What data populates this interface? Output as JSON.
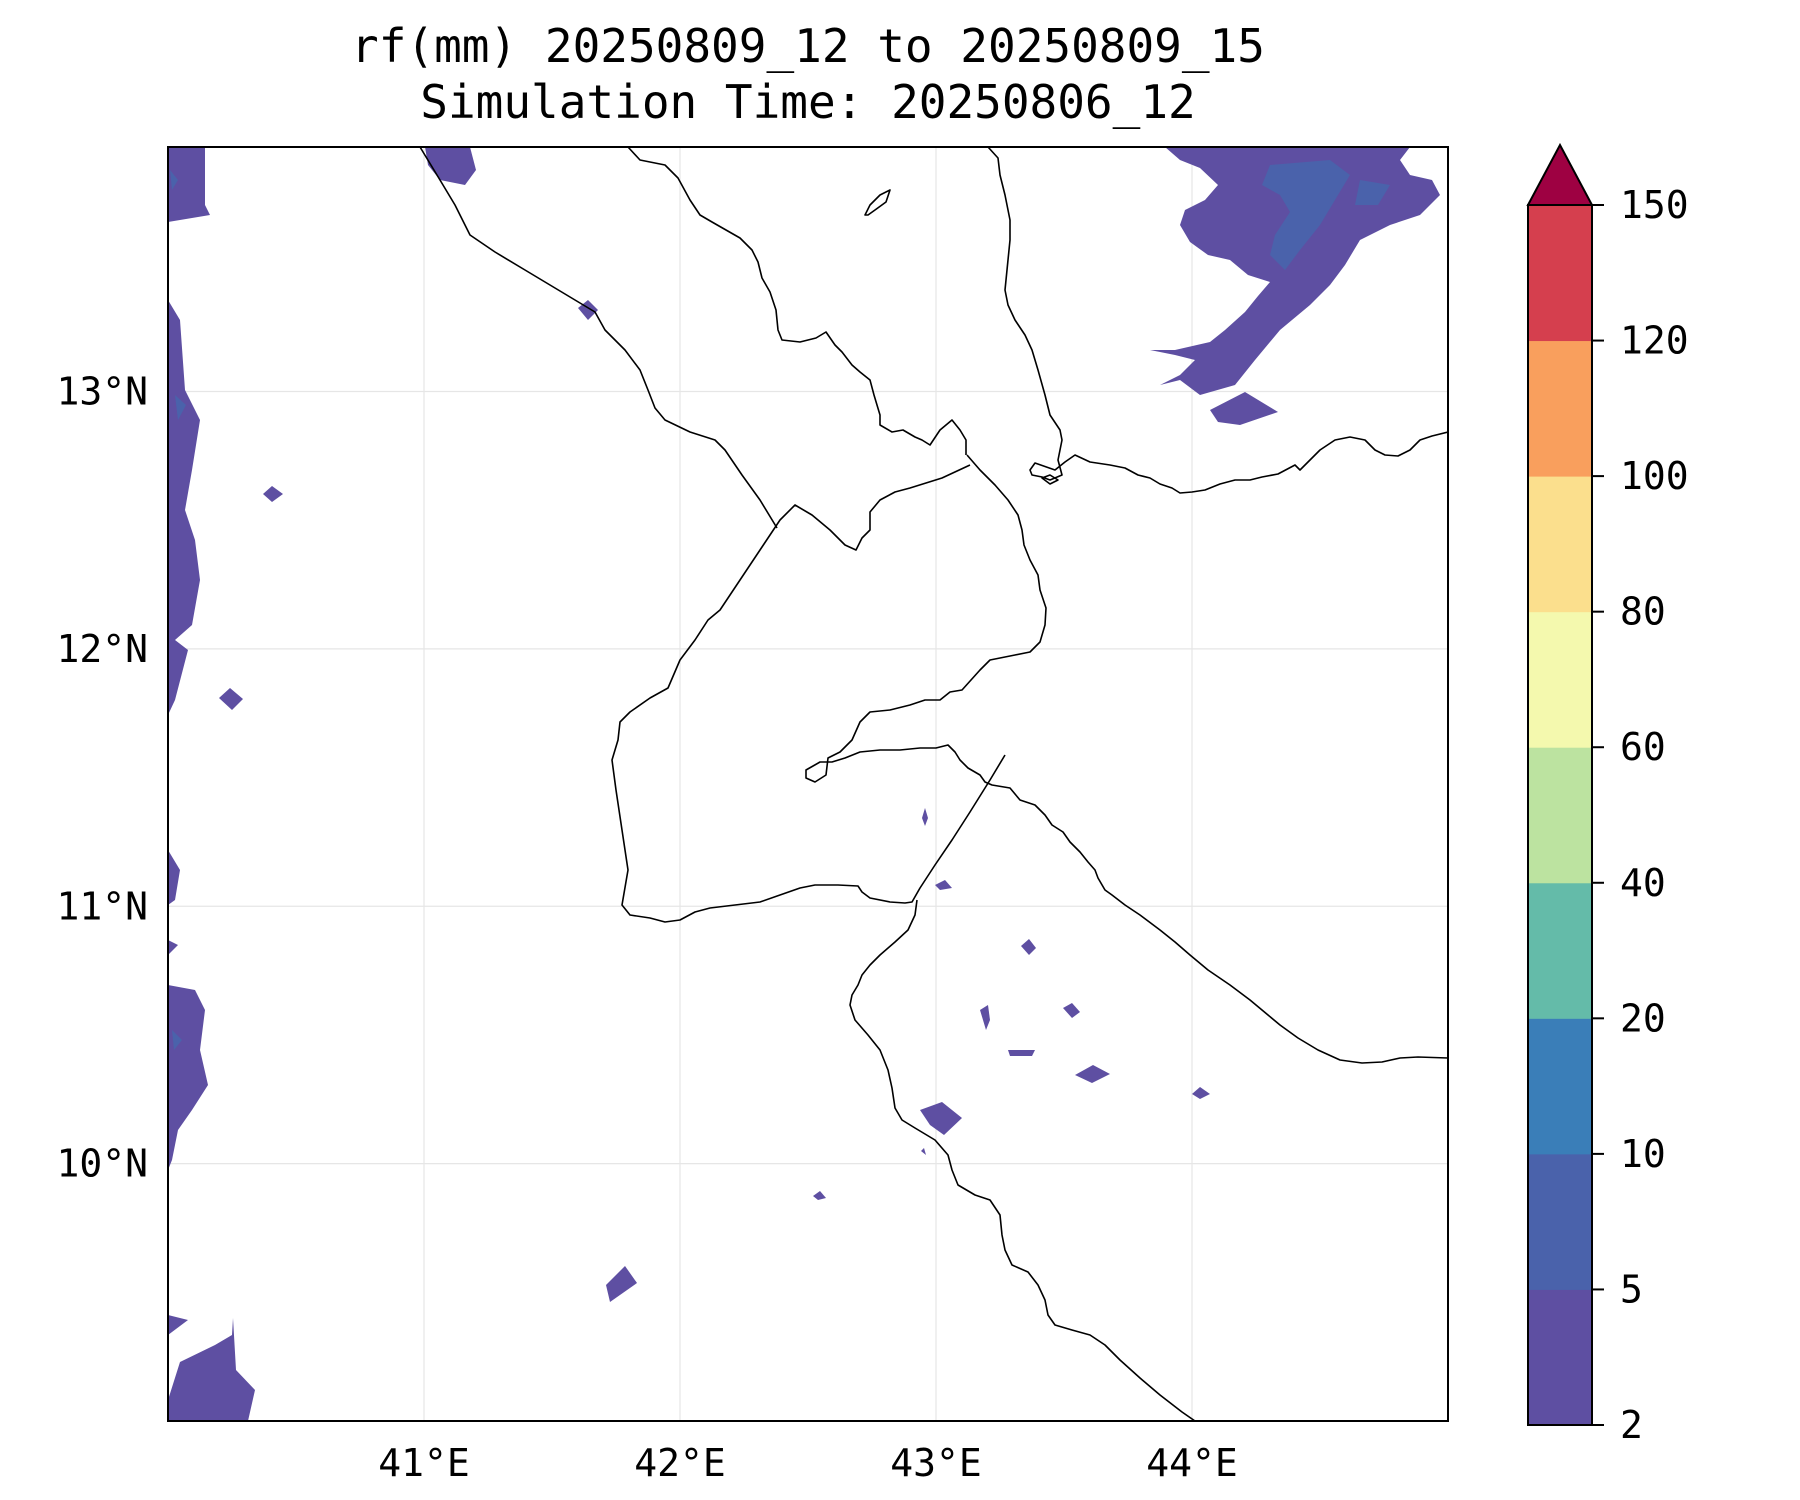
{
  "title": {
    "line1": "rf(mm) 20250809_12 to 20250809_15",
    "line2": "Simulation Time: 20250806_12"
  },
  "map": {
    "lon_range": [
      40.0,
      45.0
    ],
    "lat_range": [
      9.0,
      13.95
    ],
    "gridlines": true,
    "lon_ticks": [
      {
        "value": 41,
        "label": "41°E"
      },
      {
        "value": 42,
        "label": "42°E"
      },
      {
        "value": 43,
        "label": "43°E"
      },
      {
        "value": 44,
        "label": "44°E"
      }
    ],
    "lat_ticks": [
      {
        "value": 13,
        "label": "13°N"
      },
      {
        "value": 12,
        "label": "12°N"
      },
      {
        "value": 11,
        "label": "11°N"
      },
      {
        "value": 10,
        "label": "10°N"
      }
    ],
    "coastline_color": "#000000",
    "features": [
      "coastline",
      "country borders",
      "rainfall contours"
    ]
  },
  "colorbar": {
    "extend": "max",
    "levels": [
      {
        "value": 2,
        "label": "2"
      },
      {
        "value": 5,
        "label": "5"
      },
      {
        "value": 10,
        "label": "10"
      },
      {
        "value": 20,
        "label": "20"
      },
      {
        "value": 40,
        "label": "40"
      },
      {
        "value": 60,
        "label": "60"
      },
      {
        "value": 80,
        "label": "80"
      },
      {
        "value": 100,
        "label": "100"
      },
      {
        "value": 120,
        "label": "120"
      },
      {
        "value": 150,
        "label": "150"
      }
    ],
    "colors": [
      "#5e4fa2",
      "#4a62ab",
      "#3a7eb8",
      "#64bba9",
      "#bce3a0",
      "#f4f9ae",
      "#fbdf8d",
      "#f99f5d",
      "#d53f4e"
    ],
    "extend_color": "#9e0142"
  }
}
